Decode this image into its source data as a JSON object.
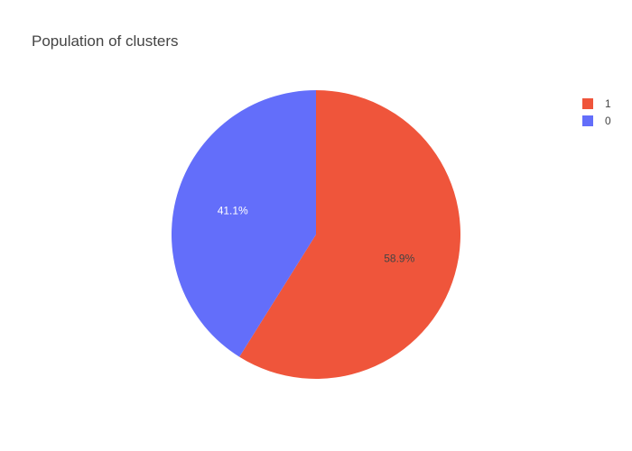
{
  "chart_data": {
    "type": "pie",
    "title": "Population of clusters",
    "slices": [
      {
        "label": "1",
        "value": 58.9,
        "percent_label": "58.9%",
        "color": "#ef553b",
        "label_color": "#444444"
      },
      {
        "label": "0",
        "value": 41.1,
        "percent_label": "41.1%",
        "color": "#636efa",
        "label_color": "#ffffff"
      }
    ],
    "start_angle_deg": 0,
    "direction": "clockwise",
    "legend": {
      "placement": "top-right",
      "entries": [
        "1",
        "0"
      ]
    }
  }
}
